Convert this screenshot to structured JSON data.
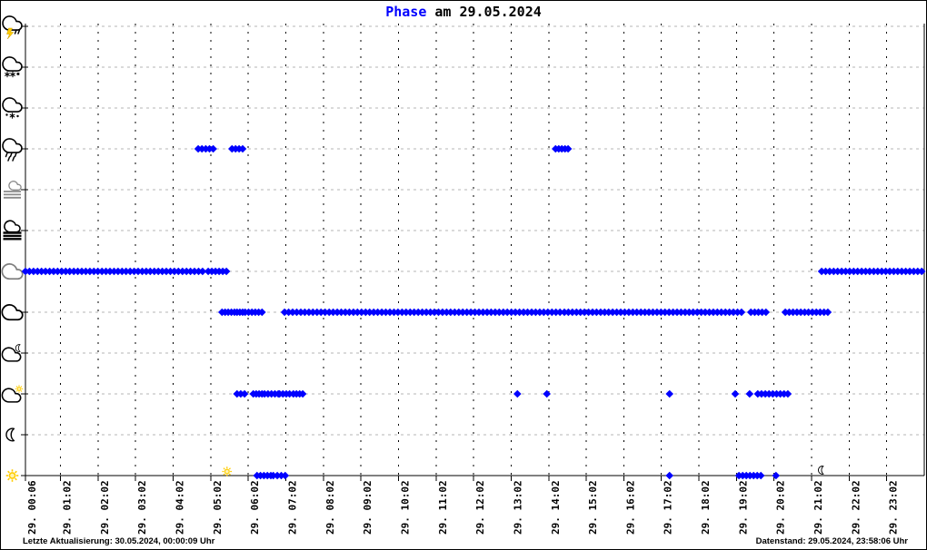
{
  "title": {
    "word": "Phase",
    "rest": "am 29.05.2024"
  },
  "footer": {
    "left": "Letzte Aktualisierung: 30.05.2024, 00:00:09 Uhr",
    "right": "Datenstand: 29.05.2024, 23:58:06 Uhr"
  },
  "colors": {
    "accent": "#0000ff",
    "point": "#0000ff",
    "grid_vertical": "#000000",
    "grid_horizontal": "#b5b5b5",
    "axis": "#000000",
    "sun": "#ffcc00",
    "gray_icon": "#8a8a8a"
  },
  "chart_data": {
    "type": "scatter",
    "title": "Phase am 29.05.2024",
    "x_axis": {
      "tick_labels": [
        "29. 00:06",
        "29. 01:02",
        "29. 02:02",
        "29. 03:02",
        "29. 04:02",
        "29. 05:02",
        "29. 06:02",
        "29. 07:02",
        "29. 08:02",
        "29. 09:02",
        "29. 10:02",
        "29. 11:02",
        "29. 12:02",
        "29. 13:02",
        "29. 14:02",
        "29. 15:02",
        "29. 16:02",
        "29. 17:02",
        "29. 18:02",
        "29. 19:02",
        "29. 20:02",
        "29. 21:02",
        "29. 22:02",
        "29. 23:02"
      ],
      "range": [
        "00:06",
        "24:02"
      ],
      "grid": "dashed"
    },
    "y_axis": {
      "icons": [
        "thunderstorm-icon",
        "sleet-icon",
        "snow-icon",
        "rain-icon",
        "mist-icon",
        "fog-icon",
        "overcast-icon",
        "cloud-icon",
        "cloud-moon-icon",
        "cloud-sun-icon",
        "moon-icon",
        "sun-icon"
      ]
    },
    "series": [
      {
        "icon": "rain-icon",
        "row": 3,
        "segments": [
          [
            "04:42",
            "05:06"
          ],
          [
            "05:36",
            "05:53"
          ],
          [
            "14:13",
            "14:33"
          ]
        ],
        "points": []
      },
      {
        "icon": "overcast-icon",
        "row": 6,
        "segments": [
          [
            "00:06",
            "04:49"
          ],
          [
            "04:58",
            "05:27"
          ],
          [
            "21:18",
            "23:58"
          ]
        ],
        "points": []
      },
      {
        "icon": "cloud-icon",
        "row": 7,
        "segments": [
          [
            "05:20",
            "05:40"
          ],
          [
            "05:44",
            "05:53"
          ],
          [
            "05:57",
            "06:24"
          ],
          [
            "07:00",
            "14:20"
          ],
          [
            "14:27",
            "19:10"
          ],
          [
            "19:25",
            "19:49"
          ],
          [
            "20:20",
            "21:28"
          ]
        ],
        "points": []
      },
      {
        "icon": "cloud-sun-icon",
        "row": 9,
        "segments": [
          [
            "05:44",
            "05:56"
          ],
          [
            "06:10",
            "06:24"
          ],
          [
            "06:28",
            "06:50"
          ],
          [
            "06:52",
            "07:08"
          ],
          [
            "07:14",
            "07:29"
          ],
          [
            "19:36",
            "20:24"
          ]
        ],
        "points": [
          "13:12",
          "13:59",
          "17:15",
          "19:00",
          "19:23"
        ]
      },
      {
        "icon": "sun-icon",
        "row": 11,
        "segments": [
          [
            "06:16",
            "06:38"
          ],
          [
            "06:42",
            "07:01"
          ],
          [
            "19:06",
            "19:41"
          ]
        ],
        "points": [
          "17:15",
          "20:05"
        ]
      }
    ],
    "markers": [
      {
        "icon": "sunrise-sun-icon",
        "time": "05:28"
      },
      {
        "icon": "sunset-moon-icon",
        "time": "21:19"
      }
    ]
  }
}
